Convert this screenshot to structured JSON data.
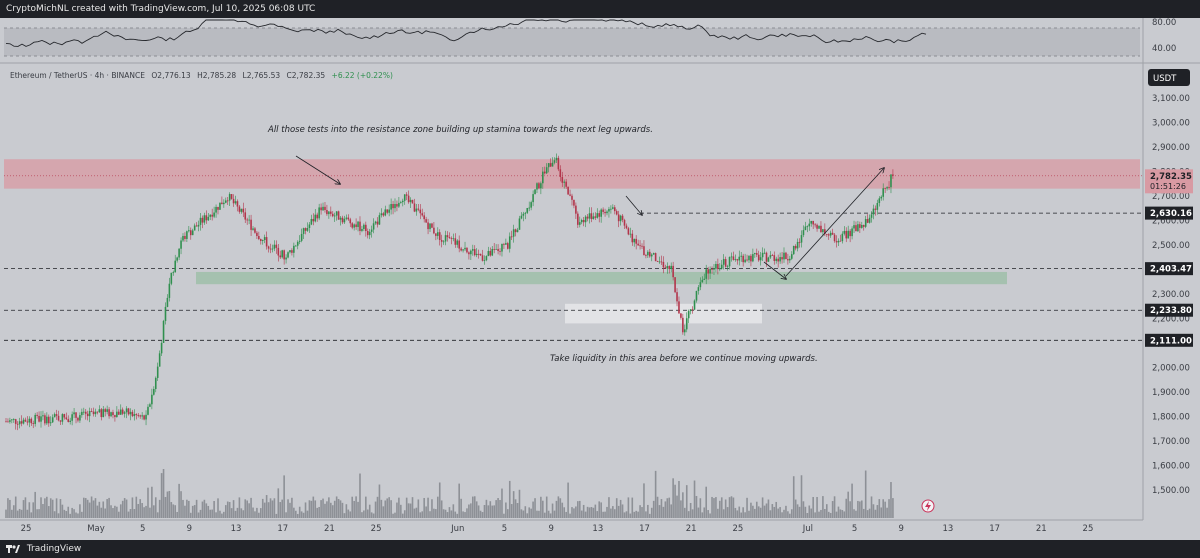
{
  "header": {
    "text": "CryptoMichNL created with TradingView.com, Jul 10, 2025 06:08 UTC"
  },
  "footer": {
    "brand": "TradingView"
  },
  "symbol_line": {
    "name": "Ethereum / TetherUS · 4h · BINANCE",
    "open": "O2,776.13",
    "high": "H2,785.28",
    "low": "L2,765.53",
    "close": "C2,782.35",
    "change": "+6.22 (+0.22%)"
  },
  "currency_badge": "USDT",
  "rsi_axis": [
    "80.00",
    "40.00"
  ],
  "price_axis_ticks": [
    "3,100.00",
    "3,000.00",
    "2,900.00",
    "2,800.00",
    "2,700.00",
    "2,600.00",
    "2,500.00",
    "2,400.00",
    "2,300.00",
    "2,200.00",
    "2,100.00",
    "2,000.00",
    "1,900.00",
    "1,800.00",
    "1,700.00",
    "1,600.00",
    "1,500.00"
  ],
  "price_tags": [
    {
      "value": "2,782.35",
      "sub": "01:51:26",
      "kind": "current"
    },
    {
      "value": "2,630.16",
      "kind": "level"
    },
    {
      "value": "2,403.47",
      "kind": "level"
    },
    {
      "value": "2,233.80",
      "kind": "level"
    },
    {
      "value": "2,111.00",
      "kind": "level"
    }
  ],
  "x_axis_labels": [
    "25",
    "May",
    "5",
    "9",
    "13",
    "17",
    "21",
    "25",
    "Jun",
    "5",
    "9",
    "13",
    "17",
    "21",
    "25",
    "Jul",
    "5",
    "9",
    "13",
    "17",
    "21",
    "25"
  ],
  "annotations": {
    "resistance_note": "All those tests into the resistance zone building up stamina towards the next leg upwards.",
    "liquidity_note": "Take liquidity in this area before we continue moving upwards."
  },
  "colors": {
    "background": "#c9cbd0",
    "bull": "#2f8f4e",
    "bear": "#b2344a",
    "resistance_zone": "#d89aa3",
    "support_zone": "#9fbfa9",
    "liquidity_zone": "#e2e3e6",
    "dark_bar": "#1f2126"
  },
  "chart_data": {
    "type": "candlestick",
    "symbol": "ETH/USDT",
    "timeframe": "4h",
    "exchange": "BINANCE",
    "ylim": [
      1450,
      3200
    ],
    "price_path": [
      [
        "Apr 25",
        1780
      ],
      [
        "May 1",
        1800
      ],
      [
        "May 5",
        1820
      ],
      [
        "May 7",
        1790
      ],
      [
        "May 8",
        2000
      ],
      [
        "May 9",
        2350
      ],
      [
        "May 10",
        2520
      ],
      [
        "May 13",
        2650
      ],
      [
        "May 14",
        2700
      ],
      [
        "May 17",
        2520
      ],
      [
        "May 19",
        2450
      ],
      [
        "May 22",
        2650
      ],
      [
        "May 26",
        2560
      ],
      [
        "May 29",
        2700
      ],
      [
        "Jun 1",
        2540
      ],
      [
        "Jun 5",
        2450
      ],
      [
        "Jun 7",
        2500
      ],
      [
        "Jun 10",
        2780
      ],
      [
        "Jun 11",
        2860
      ],
      [
        "Jun 13",
        2600
      ],
      [
        "Jun 16",
        2650
      ],
      [
        "Jun 18",
        2500
      ],
      [
        "Jun 21",
        2400
      ],
      [
        "Jun 22",
        2150
      ],
      [
        "Jun 24",
        2400
      ],
      [
        "Jun 27",
        2450
      ],
      [
        "Jul 1",
        2450
      ],
      [
        "Jul 3",
        2600
      ],
      [
        "Jul 5",
        2520
      ],
      [
        "Jul 8",
        2600
      ],
      [
        "Jul 9",
        2700
      ],
      [
        "Jul 10",
        2782.35
      ]
    ],
    "levels": [
      2630.16,
      2403.47,
      2233.8,
      2111.0
    ],
    "current_price": 2782.35,
    "resistance_zone": [
      2730,
      2850
    ],
    "support_zone": [
      2340,
      2390
    ],
    "liquidity_zone": [
      2180,
      2260
    ],
    "rsi": {
      "levels": [
        80,
        40
      ]
    }
  }
}
